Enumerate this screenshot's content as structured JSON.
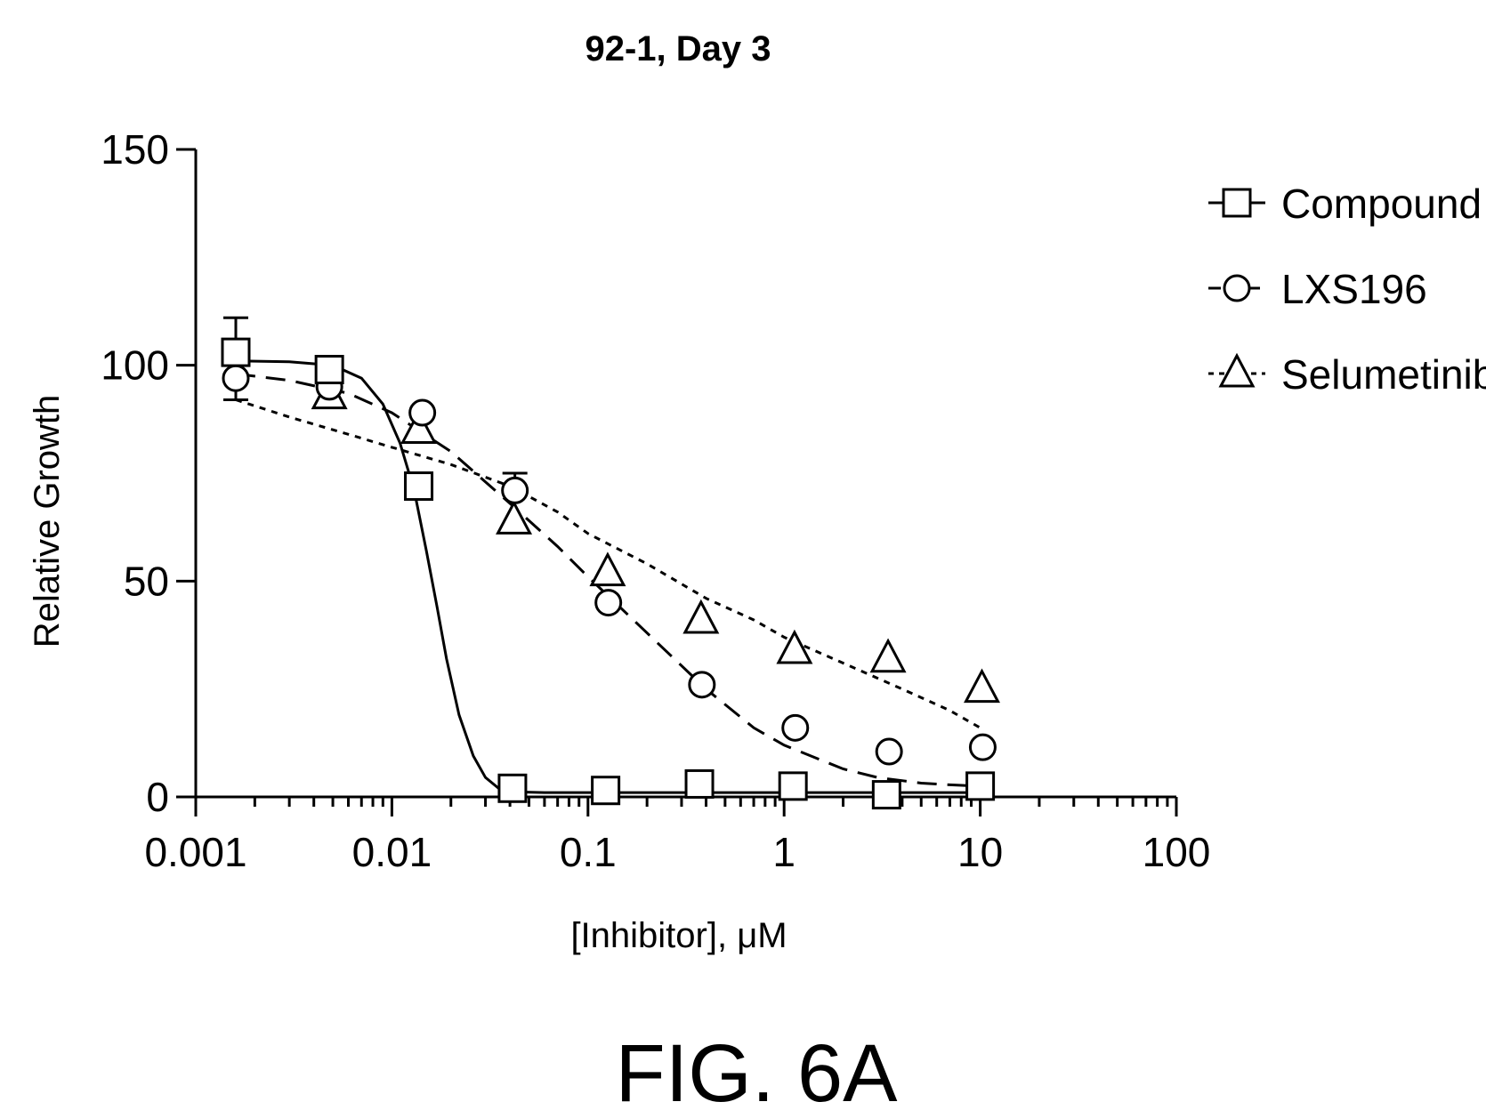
{
  "figure_caption": "FIG. 6A",
  "chart_data": {
    "type": "scatter",
    "title": "92-1, Day 3",
    "xlabel": "[Inhibitor], μM",
    "ylabel": "Relative Growth",
    "x_scale": "log",
    "xlim": [
      0.001,
      100
    ],
    "ylim": [
      0,
      150
    ],
    "x_ticks": [
      0.001,
      0.01,
      0.1,
      1,
      10,
      100
    ],
    "x_tick_labels": [
      "0.001",
      "0.01",
      "0.1",
      "1",
      "10",
      "100"
    ],
    "y_ticks": [
      0,
      50,
      100,
      150
    ],
    "y_tick_labels": [
      "0",
      "50",
      "100",
      "150"
    ],
    "grid": false,
    "legend_position": "right",
    "series": [
      {
        "name": "Compound B",
        "marker": "square",
        "line_style": "solid",
        "x": [
          0.0016,
          0.0048,
          0.0137,
          0.0412,
          0.123,
          0.37,
          1.11,
          3.33,
          10.0
        ],
        "y": [
          103,
          99,
          72,
          2,
          1.5,
          3,
          2.5,
          0.5,
          2.5
        ],
        "error_upper": [
          8,
          0,
          0,
          0,
          0,
          0,
          0,
          0,
          0
        ],
        "fit_x": [
          0.0016,
          0.003,
          0.005,
          0.007,
          0.009,
          0.011,
          0.013,
          0.015,
          0.017,
          0.019,
          0.022,
          0.026,
          0.03,
          0.035,
          0.041,
          0.06,
          0.1,
          0.3,
          1,
          3,
          10
        ],
        "fit_y": [
          101,
          100.8,
          100,
          97,
          91,
          82,
          71,
          57,
          44,
          32,
          19,
          9.5,
          4.5,
          2,
          1.2,
          1,
          1,
          1,
          1,
          1,
          1
        ]
      },
      {
        "name": "LXS196",
        "marker": "circle",
        "line_style": "dashed",
        "x": [
          0.0016,
          0.0048,
          0.0143,
          0.0424,
          0.127,
          0.381,
          1.14,
          3.43,
          10.3
        ],
        "y": [
          97,
          95,
          89,
          71,
          45,
          26,
          16,
          10.5,
          11.5
        ],
        "error_lower": [
          5,
          0,
          0,
          0,
          0,
          0,
          0,
          0,
          0
        ],
        "error_upper": [
          0,
          0,
          0,
          4,
          0,
          0,
          0,
          0,
          0
        ],
        "fit_x": [
          0.0016,
          0.003,
          0.006,
          0.01,
          0.02,
          0.04,
          0.07,
          0.1,
          0.2,
          0.4,
          0.7,
          1,
          2,
          3,
          5,
          7,
          9
        ],
        "fit_y": [
          98,
          96.5,
          93.5,
          89,
          80,
          68,
          58,
          51,
          38,
          25,
          16,
          12,
          6.5,
          4.5,
          3.2,
          2.8,
          2.6
        ]
      },
      {
        "name": "Selumetinib",
        "marker": "triangle",
        "line_style": "dotted",
        "x": [
          0.0048,
          0.0137,
          0.0419,
          0.126,
          0.377,
          1.13,
          3.39,
          10.2
        ],
        "y": [
          93,
          85,
          64,
          52,
          41,
          34,
          32,
          25
        ],
        "fit_x": [
          0.0016,
          0.003,
          0.006,
          0.01,
          0.02,
          0.04,
          0.07,
          0.1,
          0.2,
          0.4,
          0.7,
          1,
          2,
          4,
          7,
          10
        ],
        "fit_y": [
          92,
          88,
          84,
          81,
          77,
          72,
          66,
          61,
          54,
          46,
          41,
          37,
          31,
          25,
          20,
          16
        ]
      }
    ]
  }
}
